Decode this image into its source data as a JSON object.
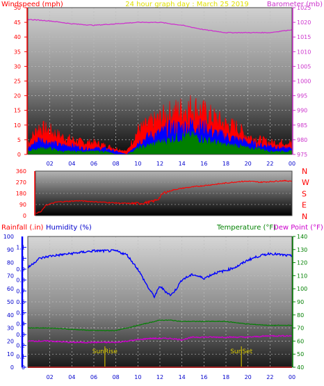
{
  "header": {
    "left": "Windspeed (mph)",
    "center": "24 hour graph day : March 25 2019",
    "right": "Barometer (mb)"
  },
  "wind_panel": {
    "yticks_left": [
      "0",
      "5",
      "10",
      "15",
      "20",
      "25",
      "30",
      "35",
      "40",
      "45",
      "50"
    ],
    "yticks_right": [
      "975",
      "980",
      "985",
      "990",
      "995",
      "1000",
      "1005",
      "1010",
      "1015",
      "1020",
      "1025"
    ],
    "xticks": [
      "02",
      "04",
      "06",
      "08",
      "10",
      "12",
      "14",
      "16",
      "18",
      "20",
      "22",
      "00"
    ]
  },
  "dir_panel": {
    "yticks": [
      "360",
      "270",
      "180",
      "90",
      "0"
    ],
    "compass": [
      "N",
      "W",
      "S",
      "E",
      "N"
    ]
  },
  "bottom_panel": {
    "label_rain": "Rainfall (.in)",
    "label_hum": "Humidity (%)",
    "label_temp": "Temperature (°F)",
    "label_dew": "Dew Point (°F)",
    "yticks_hum": [
      "0",
      "10",
      "20",
      "30",
      "40",
      "50",
      "60",
      "70",
      "80",
      "90",
      "100"
    ],
    "yticks_rain": [
      "0",
      "0.1",
      "0.2",
      "0.3",
      "0.4",
      "0.5",
      "0.6",
      "0.7",
      "0.8",
      "0.9",
      "1",
      "1.1"
    ],
    "yticks_temp": [
      "40",
      "50",
      "60",
      "70",
      "80",
      "90",
      "100",
      "110",
      "120",
      "130",
      "140"
    ],
    "xticks": [
      "02",
      "04",
      "06",
      "08",
      "10",
      "12",
      "14",
      "16",
      "18",
      "20",
      "22",
      "00"
    ],
    "sunrise": "SunRise",
    "sunset": "SunSet"
  },
  "colors": {
    "wind_max": "#ff0000",
    "wind_avg": "#0000ff",
    "wind_min": "#008000",
    "barometer": "#cc33cc",
    "direction": "#ff0000",
    "humidity": "#0000ff",
    "temperature": "#008000",
    "dewpoint": "#cc00cc",
    "sun": "#c8b400",
    "rain": "#0000ff"
  },
  "chart_data": [
    {
      "type": "area",
      "title": "24 hour graph day : March 25 2019",
      "ylabel": "Windspeed (mph)",
      "ylim": [
        0,
        50
      ],
      "x": [
        0,
        1,
        2,
        3,
        4,
        5,
        6,
        7,
        8,
        9,
        10,
        11,
        12,
        13,
        14,
        15,
        16,
        17,
        18,
        19,
        20,
        21,
        22,
        23,
        24
      ],
      "series": [
        {
          "name": "max",
          "values": [
            4,
            9,
            8,
            6,
            5,
            4,
            4,
            3,
            2,
            1,
            8,
            10,
            12,
            14,
            15,
            16,
            14,
            12,
            10,
            9,
            6,
            5,
            4,
            4,
            4
          ]
        },
        {
          "name": "avg",
          "values": [
            2,
            5,
            4,
            3,
            3,
            2,
            2,
            2,
            1,
            0,
            4,
            6,
            7,
            9,
            9,
            10,
            9,
            7,
            6,
            5,
            4,
            3,
            3,
            2,
            2
          ]
        },
        {
          "name": "min",
          "values": [
            1,
            2,
            2,
            1,
            1,
            1,
            1,
            1,
            0,
            0,
            2,
            3,
            4,
            5,
            6,
            6,
            5,
            4,
            3,
            3,
            2,
            2,
            1,
            1,
            1
          ]
        }
      ]
    },
    {
      "type": "line",
      "ylabel": "Barometer (mb)",
      "ylim": [
        975,
        1025
      ],
      "x": [
        0,
        2,
        4,
        6,
        8,
        10,
        12,
        14,
        16,
        18,
        20,
        22,
        24
      ],
      "series": [
        {
          "name": "Barometer",
          "values": [
            1021,
            1020.5,
            1019.5,
            1019,
            1019.5,
            1020,
            1020,
            1019,
            1017.5,
            1016.5,
            1016.5,
            1016.5,
            1017.5
          ]
        }
      ]
    },
    {
      "type": "line",
      "ylim": [
        0,
        360
      ],
      "x": [
        0,
        0.5,
        1,
        2,
        3,
        4,
        5,
        6,
        7,
        8,
        9,
        10,
        11,
        11.5,
        12,
        13,
        14,
        15,
        16,
        17,
        18,
        19,
        20,
        21,
        22,
        23,
        24
      ],
      "series": [
        {
          "name": "Wind direction",
          "values": [
            20,
            30,
            85,
            110,
            115,
            120,
            115,
            110,
            105,
            100,
            98,
            100,
            115,
            135,
            185,
            210,
            225,
            235,
            245,
            255,
            265,
            275,
            278,
            270,
            275,
            282,
            280
          ]
        }
      ]
    },
    {
      "type": "line",
      "ylabel": "Humidity (%)",
      "ylim": [
        0,
        100
      ],
      "x": [
        0,
        1,
        2,
        3,
        4,
        5,
        6,
        7,
        8,
        9,
        10,
        11,
        11.5,
        12,
        12.5,
        13,
        13.5,
        14,
        15,
        16,
        17,
        18,
        19,
        20,
        21,
        22,
        23,
        24
      ],
      "series": [
        {
          "name": "Humidity",
          "values": [
            76,
            83,
            85,
            86,
            87,
            88,
            89,
            89,
            89,
            86,
            75,
            60,
            54,
            62,
            58,
            55,
            60,
            67,
            71,
            68,
            72,
            74,
            77,
            82,
            85,
            87,
            86,
            85
          ]
        }
      ]
    },
    {
      "type": "line",
      "ylabel": "Temperature (°F)",
      "ylim": [
        40,
        140
      ],
      "x": [
        0,
        2,
        4,
        6,
        8,
        9,
        10,
        11,
        12,
        13,
        14,
        15,
        16,
        18,
        20,
        22,
        24
      ],
      "series": [
        {
          "name": "Temperature",
          "values": [
            70,
            70,
            69,
            68,
            68,
            70,
            72,
            74,
            76,
            76,
            75,
            75,
            75,
            75,
            73,
            72,
            72
          ]
        },
        {
          "name": "Dew Point",
          "values": [
            60,
            60,
            59,
            59,
            59,
            60,
            61,
            62,
            62,
            62,
            61,
            63,
            63,
            63,
            63,
            64,
            64
          ]
        }
      ]
    }
  ]
}
